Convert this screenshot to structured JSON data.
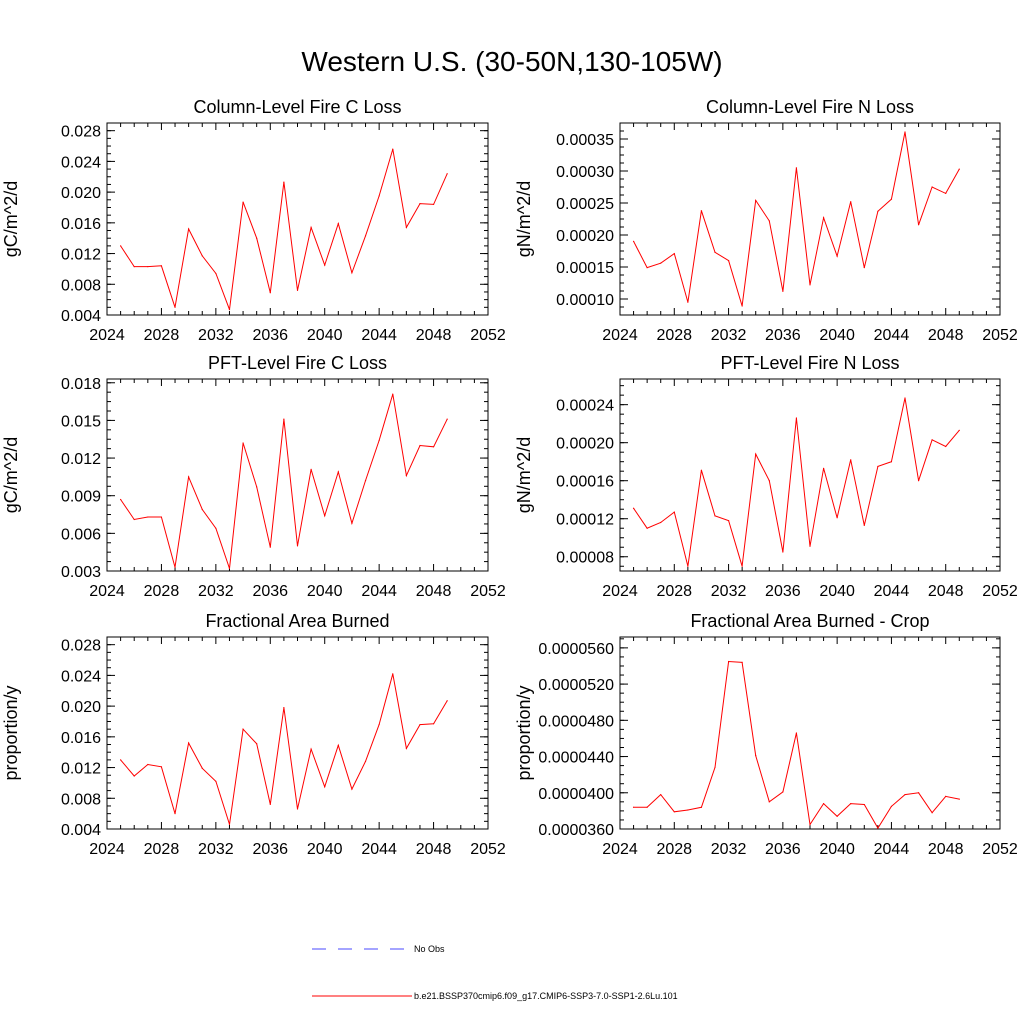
{
  "figure": {
    "title": "Western U.S. (30-50N,130-105W)"
  },
  "colors": {
    "model": "#ff0000",
    "obs": "#4a4aff",
    "axis": "#000000"
  },
  "legend": {
    "obs_label": "No Obs",
    "model_label": "b.e21.BSSP370cmip6.f09_g17.CMIP6-SSP3-7.0-SSP1-2.6Lu.101"
  },
  "chart_data": [
    {
      "type": "line",
      "title": "Column-Level Fire C Loss",
      "ylabel": "gC/m^2/d",
      "xlim": [
        2024,
        2052
      ],
      "ylim": [
        0.004,
        0.029
      ],
      "xticks": [
        "2024",
        "2028",
        "2032",
        "2036",
        "2040",
        "2044",
        "2048",
        "2052"
      ],
      "yticks": [
        "0.004",
        "0.008",
        "0.012",
        "0.016",
        "0.020",
        "0.024",
        "0.028"
      ],
      "x": [
        2025,
        2026,
        2027,
        2028,
        2029,
        2030,
        2031,
        2032,
        2033,
        2034,
        2035,
        2036,
        2037,
        2038,
        2039,
        2040,
        2041,
        2042,
        2043,
        2044,
        2045,
        2046,
        2047,
        2048,
        2049
      ],
      "series": [
        {
          "values": [
            0.013,
            0.0103,
            0.0103,
            0.0104,
            0.005,
            0.0152,
            0.0117,
            0.0094,
            0.0047,
            0.0187,
            0.014,
            0.0069,
            0.0213,
            0.0072,
            0.0154,
            0.0105,
            0.0159,
            0.0095,
            0.0143,
            0.0195,
            0.0256,
            0.0154,
            0.0185,
            0.0184,
            0.0224
          ]
        }
      ]
    },
    {
      "type": "line",
      "title": "Column-Level Fire N Loss",
      "ylabel": "gN/m^2/d",
      "xlim": [
        2024,
        2052
      ],
      "ylim": [
        7.5e-05,
        0.000375
      ],
      "xticks": [
        "2024",
        "2028",
        "2032",
        "2036",
        "2040",
        "2044",
        "2048",
        "2052"
      ],
      "yticks": [
        "0.00010",
        "0.00015",
        "0.00020",
        "0.00025",
        "0.00030",
        "0.00035"
      ],
      "x": [
        2025,
        2026,
        2027,
        2028,
        2029,
        2030,
        2031,
        2032,
        2033,
        2034,
        2035,
        2036,
        2037,
        2038,
        2039,
        2040,
        2041,
        2042,
        2043,
        2044,
        2045,
        2046,
        2047,
        2048,
        2049
      ],
      "series": [
        {
          "values": [
            0.00019,
            0.000149,
            0.000156,
            0.000171,
            9.5e-05,
            0.000238,
            0.000173,
            0.00016,
            8.9e-05,
            0.000254,
            0.000222,
            0.000112,
            0.000305,
            0.000122,
            0.000227,
            0.000167,
            0.000252,
            0.000149,
            0.000237,
            0.000256,
            0.000361,
            0.000216,
            0.000275,
            0.000265,
            0.000303
          ]
        }
      ]
    },
    {
      "type": "line",
      "title": "PFT-Level Fire C Loss",
      "ylabel": "gC/m^2/d",
      "xlim": [
        2024,
        2052
      ],
      "ylim": [
        0.003,
        0.0183
      ],
      "xticks": [
        "2024",
        "2028",
        "2032",
        "2036",
        "2040",
        "2044",
        "2048",
        "2052"
      ],
      "yticks": [
        "0.003",
        "0.006",
        "0.009",
        "0.012",
        "0.015",
        "0.018"
      ],
      "x": [
        2025,
        2026,
        2027,
        2028,
        2029,
        2030,
        2031,
        2032,
        2033,
        2034,
        2035,
        2036,
        2037,
        2038,
        2039,
        2040,
        2041,
        2042,
        2043,
        2044,
        2045,
        2046,
        2047,
        2048,
        2049
      ],
      "series": [
        {
          "values": [
            0.0087,
            0.0071,
            0.0073,
            0.0073,
            0.0033,
            0.0105,
            0.0079,
            0.0064,
            0.0032,
            0.0132,
            0.0097,
            0.0049,
            0.0151,
            0.005,
            0.0111,
            0.0074,
            0.0109,
            0.0068,
            0.0102,
            0.0134,
            0.0171,
            0.0106,
            0.013,
            0.0129,
            0.0151
          ]
        }
      ]
    },
    {
      "type": "line",
      "title": "PFT-Level Fire N Loss",
      "ylabel": "gN/m^2/d",
      "xlim": [
        2024,
        2052
      ],
      "ylim": [
        6.5e-05,
        0.000267
      ],
      "xticks": [
        "2024",
        "2028",
        "2032",
        "2036",
        "2040",
        "2044",
        "2048",
        "2052"
      ],
      "yticks": [
        "0.00008",
        "0.00012",
        "0.00016",
        "0.00020",
        "0.00024"
      ],
      "x": [
        2025,
        2026,
        2027,
        2028,
        2029,
        2030,
        2031,
        2032,
        2033,
        2034,
        2035,
        2036,
        2037,
        2038,
        2039,
        2040,
        2041,
        2042,
        2043,
        2044,
        2045,
        2046,
        2047,
        2048,
        2049
      ],
      "series": [
        {
          "values": [
            0.000131,
            0.00011,
            0.000116,
            0.000127,
            7e-05,
            0.000171,
            0.000123,
            0.000118,
            7e-05,
            0.000188,
            0.00016,
            8.5e-05,
            0.000226,
            9.1e-05,
            0.000173,
            0.000121,
            0.000182,
            0.000113,
            0.000175,
            0.00018,
            0.000247,
            0.00016,
            0.000203,
            0.000196,
            0.000213
          ]
        }
      ]
    },
    {
      "type": "line",
      "title": "Fractional Area Burned",
      "ylabel": "proportion/y",
      "xlim": [
        2024,
        2052
      ],
      "ylim": [
        0.004,
        0.029
      ],
      "xticks": [
        "2024",
        "2028",
        "2032",
        "2036",
        "2040",
        "2044",
        "2048",
        "2052"
      ],
      "yticks": [
        "0.004",
        "0.008",
        "0.012",
        "0.016",
        "0.020",
        "0.024",
        "0.028"
      ],
      "x": [
        2025,
        2026,
        2027,
        2028,
        2029,
        2030,
        2031,
        2032,
        2033,
        2034,
        2035,
        2036,
        2037,
        2038,
        2039,
        2040,
        2041,
        2042,
        2043,
        2044,
        2045,
        2046,
        2047,
        2048,
        2049
      ],
      "series": [
        {
          "values": [
            0.013,
            0.0109,
            0.0124,
            0.0121,
            0.006,
            0.0152,
            0.0119,
            0.0102,
            0.0046,
            0.017,
            0.0151,
            0.0072,
            0.0198,
            0.0066,
            0.0144,
            0.0095,
            0.0149,
            0.0092,
            0.0128,
            0.0176,
            0.0242,
            0.0145,
            0.0176,
            0.0177,
            0.0207
          ]
        }
      ]
    },
    {
      "type": "line",
      "title": "Fractional Area Burned - Crop",
      "ylabel": "proportion/y",
      "xlim": [
        2024,
        2052
      ],
      "ylim": [
        3.6e-05,
        5.72e-05
      ],
      "xticks": [
        "2024",
        "2028",
        "2032",
        "2036",
        "2040",
        "2044",
        "2048",
        "2052"
      ],
      "yticks": [
        "0.0000360",
        "0.0000400",
        "0.0000440",
        "0.0000480",
        "0.0000520",
        "0.0000560"
      ],
      "x": [
        2025,
        2026,
        2027,
        2028,
        2029,
        2030,
        2031,
        2032,
        2033,
        2034,
        2035,
        2036,
        2037,
        2038,
        2039,
        2040,
        2041,
        2042,
        2043,
        2044,
        2045,
        2046,
        2047,
        2048,
        2049
      ],
      "series": [
        {
          "values": [
            3.84e-05,
            3.84e-05,
            3.98e-05,
            3.79e-05,
            3.81e-05,
            3.84e-05,
            4.28e-05,
            5.45e-05,
            5.44e-05,
            4.41e-05,
            3.9e-05,
            4.01e-05,
            4.66e-05,
            3.65e-05,
            3.88e-05,
            3.74e-05,
            3.88e-05,
            3.87e-05,
            3.61e-05,
            3.85e-05,
            3.98e-05,
            4e-05,
            3.78e-05,
            3.96e-05,
            3.93e-05
          ]
        }
      ]
    }
  ]
}
